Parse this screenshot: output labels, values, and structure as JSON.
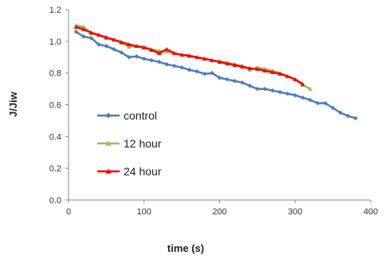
{
  "chart_data": {
    "type": "line",
    "xlabel": "time (s)",
    "ylabel": "J/Jiw",
    "xlim": [
      0,
      400
    ],
    "ylim": [
      0,
      1.2
    ],
    "xticks": [
      0,
      100,
      200,
      300,
      400
    ],
    "yticks": [
      0.0,
      0.2,
      0.4,
      0.6,
      0.8,
      1.0,
      1.2
    ],
    "xtick_labels": [
      "0",
      "100",
      "200",
      "300",
      "400"
    ],
    "ytick_labels": [
      "0.0",
      "0.2",
      "0.4",
      "0.6",
      "0.8",
      "1.0",
      "1.2"
    ],
    "grid": false,
    "legend_position": "lower-left",
    "series": [
      {
        "name": "control",
        "color": "#4a7ebb",
        "marker": "diamond",
        "x": [
          10,
          20,
          30,
          40,
          50,
          60,
          70,
          80,
          90,
          100,
          110,
          120,
          130,
          140,
          150,
          160,
          170,
          180,
          190,
          200,
          210,
          220,
          230,
          240,
          250,
          260,
          270,
          280,
          290,
          300,
          310,
          320,
          330,
          340,
          350,
          360,
          370,
          380
        ],
        "y": [
          1.06,
          1.03,
          1.02,
          0.98,
          0.97,
          0.95,
          0.93,
          0.9,
          0.905,
          0.89,
          0.88,
          0.87,
          0.855,
          0.845,
          0.835,
          0.82,
          0.81,
          0.795,
          0.8,
          0.77,
          0.76,
          0.75,
          0.74,
          0.72,
          0.7,
          0.7,
          0.69,
          0.68,
          0.67,
          0.66,
          0.645,
          0.63,
          0.61,
          0.61,
          0.58,
          0.55,
          0.53,
          0.515
        ]
      },
      {
        "name": "12 hour",
        "color": "#9bbb59",
        "marker": "triangle",
        "x": [
          10,
          20,
          30,
          40,
          50,
          60,
          70,
          80,
          90,
          100,
          110,
          120,
          130,
          140,
          150,
          160,
          170,
          180,
          190,
          200,
          210,
          220,
          230,
          240,
          250,
          260,
          270,
          280,
          290,
          300,
          310,
          320
        ],
        "y": [
          1.1,
          1.09,
          1.05,
          1.04,
          1.02,
          1.01,
          0.99,
          0.965,
          0.97,
          0.965,
          0.95,
          0.94,
          0.935,
          0.925,
          0.915,
          0.905,
          0.9,
          0.89,
          0.88,
          0.875,
          0.865,
          0.855,
          0.845,
          0.82,
          0.835,
          0.825,
          0.815,
          0.8,
          0.78,
          0.76,
          0.725,
          0.7
        ]
      },
      {
        "name": "24 hour",
        "color": "#ff0000",
        "marker": "triangle",
        "x": [
          10,
          20,
          30,
          40,
          50,
          60,
          70,
          80,
          90,
          100,
          110,
          120,
          130,
          140,
          150,
          160,
          170,
          180,
          190,
          200,
          210,
          220,
          230,
          240,
          250,
          260,
          270,
          280,
          290,
          300,
          310
        ],
        "y": [
          1.09,
          1.075,
          1.055,
          1.04,
          1.025,
          1.01,
          0.995,
          0.98,
          0.97,
          0.96,
          0.945,
          0.925,
          0.95,
          0.925,
          0.915,
          0.91,
          0.9,
          0.89,
          0.88,
          0.87,
          0.86,
          0.85,
          0.84,
          0.83,
          0.825,
          0.815,
          0.805,
          0.795,
          0.78,
          0.76,
          0.73
        ]
      }
    ]
  }
}
